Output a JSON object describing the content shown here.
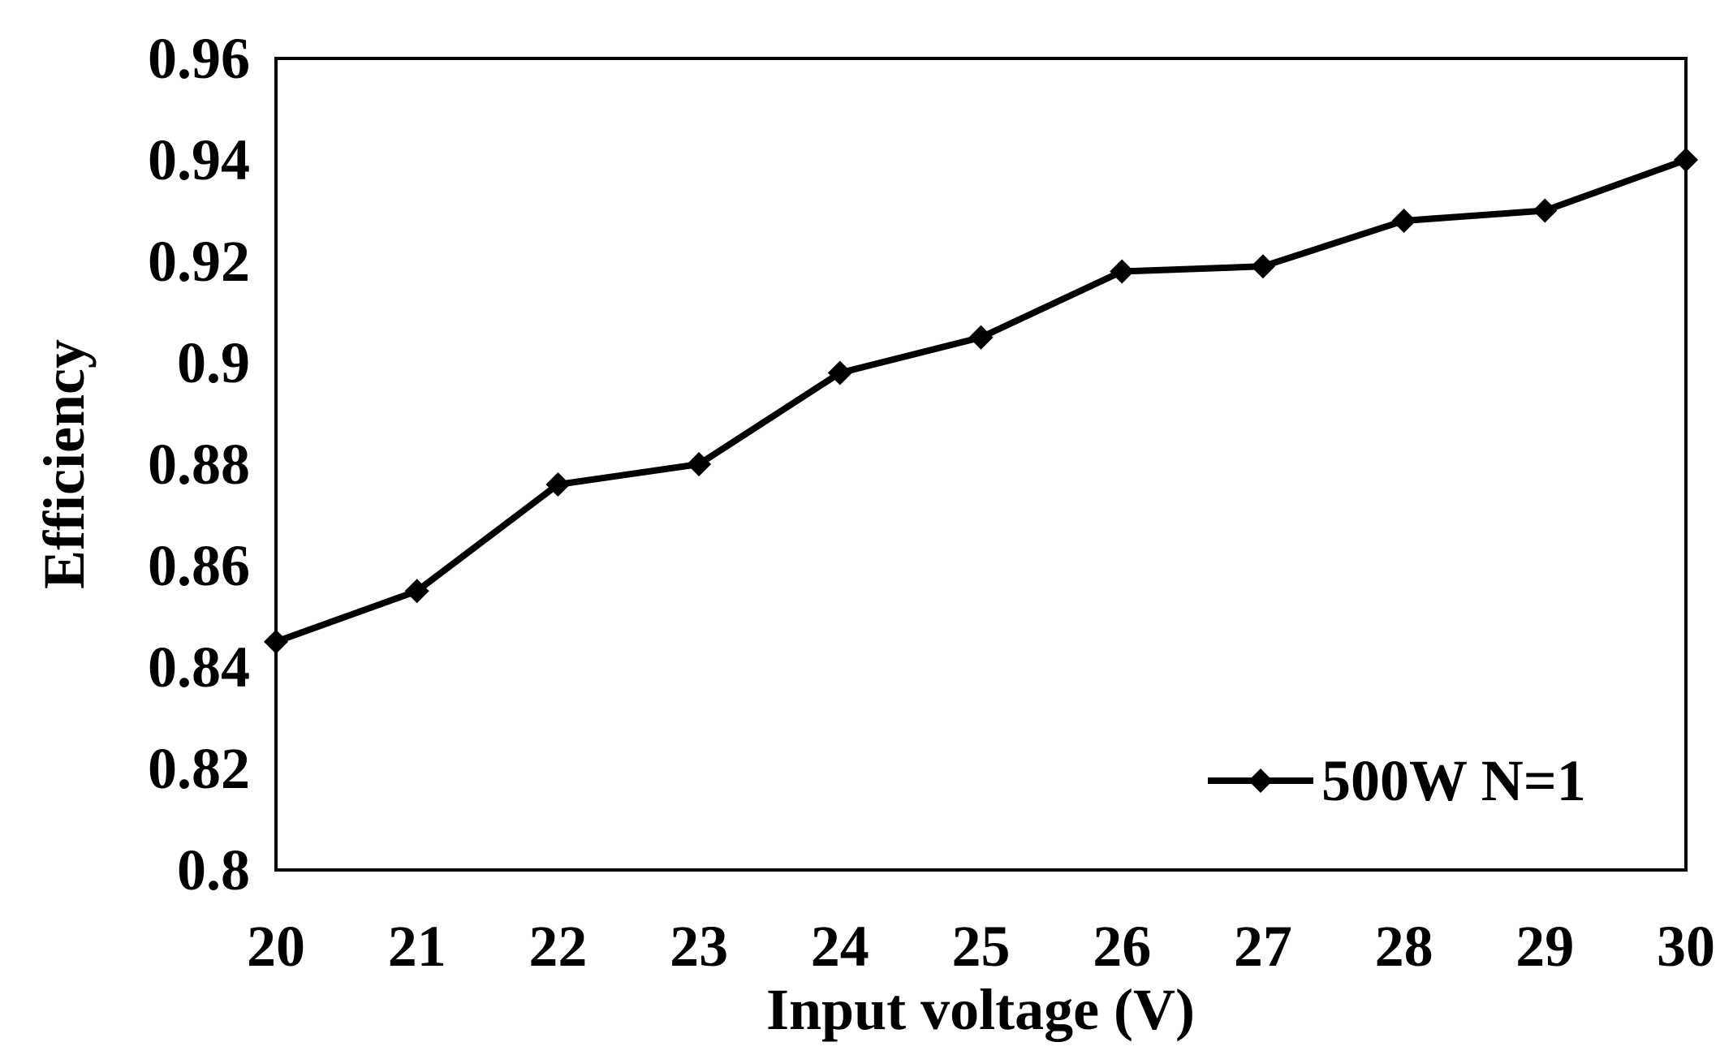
{
  "chart_data": {
    "type": "line",
    "title": "",
    "xlabel": "Input voltage (V)",
    "ylabel": "Efficiency",
    "xlim": [
      20,
      30
    ],
    "ylim": [
      0.8,
      0.96
    ],
    "x_ticks": [
      "20",
      "21",
      "22",
      "23",
      "24",
      "25",
      "26",
      "27",
      "28",
      "29",
      "30"
    ],
    "y_ticks": [
      "0.8",
      "0.82",
      "0.84",
      "0.86",
      "0.88",
      "0.9",
      "0.92",
      "0.94",
      "0.96"
    ],
    "x": [
      20,
      21,
      22,
      23,
      24,
      25,
      26,
      27,
      28,
      29,
      30
    ],
    "series": [
      {
        "name": "500W N=1",
        "marker": "diamond",
        "color": "#000000",
        "values": [
          0.845,
          0.855,
          0.876,
          0.88,
          0.898,
          0.905,
          0.918,
          0.919,
          0.928,
          0.93,
          0.94
        ]
      }
    ],
    "grid": false,
    "legend_position": "bottom-right"
  }
}
